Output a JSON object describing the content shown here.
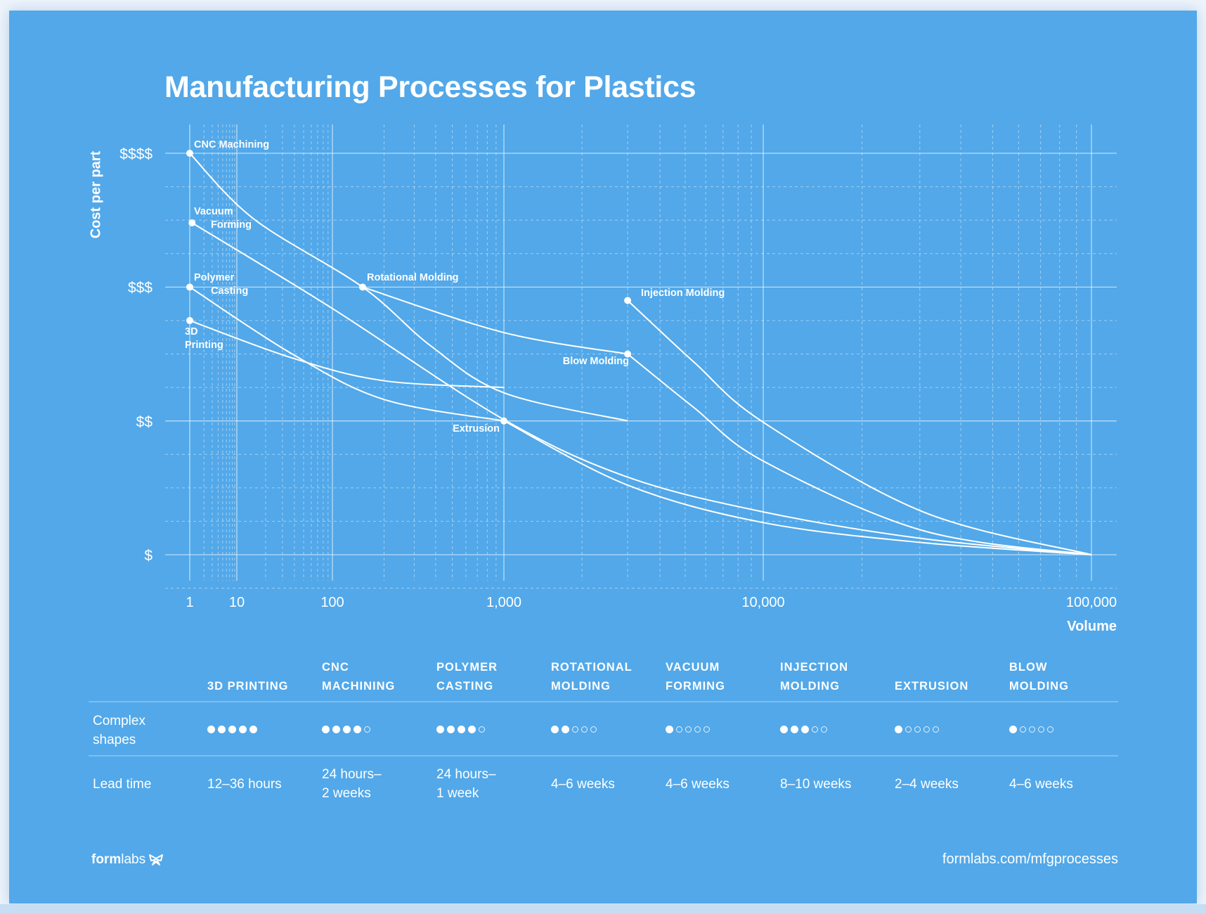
{
  "title": "Manufacturing Processes for Plastics",
  "chart_data": {
    "type": "line",
    "title": "Manufacturing Processes for Plastics",
    "xlabel": "Volume",
    "ylabel": "Cost per part",
    "xscale": "log",
    "xlim": [
      1,
      100000
    ],
    "ylim": [
      1,
      4
    ],
    "x_ticks": [
      {
        "value": 1,
        "label": "1"
      },
      {
        "value": 10,
        "label": "10"
      },
      {
        "value": 100,
        "label": "100"
      },
      {
        "value": 1000,
        "label": "1,000"
      },
      {
        "value": 10000,
        "label": "10,000"
      },
      {
        "value": 100000,
        "label": "100,000"
      }
    ],
    "y_ticks": [
      {
        "value": 4,
        "label": "$$$$"
      },
      {
        "value": 3,
        "label": "$$$"
      },
      {
        "value": 2,
        "label": "$$"
      },
      {
        "value": 1,
        "label": "$"
      }
    ],
    "grid": true,
    "line_color": "#ffffff",
    "curves": [
      {
        "points": [
          [
            1,
            4
          ],
          [
            15,
            3.51
          ],
          [
            150,
            3.0
          ],
          [
            375,
            2.56
          ],
          [
            1000,
            2.21
          ],
          [
            3000,
            2.0
          ]
        ]
      },
      {
        "points": [
          [
            150,
            3.0
          ],
          [
            1000,
            2.66
          ],
          [
            3000,
            2.5
          ]
        ]
      },
      {
        "points": [
          [
            3000,
            2.5
          ],
          [
            5400,
            2.1
          ],
          [
            10000,
            1.7
          ],
          [
            30700,
            1.18
          ],
          [
            100000,
            1.0
          ]
        ]
      },
      {
        "points": [
          [
            3000,
            2.9
          ],
          [
            5400,
            2.44
          ],
          [
            10000,
            1.99
          ],
          [
            30700,
            1.32
          ],
          [
            100000,
            1.0
          ]
        ]
      },
      {
        "points": [
          [
            1.12,
            3.48
          ],
          [
            100,
            2.84
          ],
          [
            1000,
            2.01
          ],
          [
            3000,
            1.58
          ],
          [
            10000,
            1.32
          ],
          [
            30700,
            1.12
          ],
          [
            100000,
            1.0
          ]
        ]
      },
      {
        "points": [
          [
            1,
            3.0
          ],
          [
            38,
            2.5
          ],
          [
            200,
            2.16
          ],
          [
            1000,
            2.0
          ]
        ]
      },
      {
        "points": [
          [
            1000,
            2.0
          ],
          [
            3000,
            1.52
          ],
          [
            10000,
            1.24
          ],
          [
            30700,
            1.09
          ],
          [
            100000,
            1.0
          ]
        ]
      },
      {
        "points": [
          [
            1,
            2.75
          ],
          [
            38,
            2.47
          ],
          [
            200,
            2.3
          ],
          [
            1000,
            2.25
          ]
        ]
      }
    ],
    "annotations": [
      {
        "label": "CNC Machining",
        "lines": [
          "CNC Machining"
        ],
        "x": 1,
        "y": 4
      },
      {
        "label": "Vacuum Forming",
        "lines": [
          "Vacuum",
          "Forming"
        ],
        "x": 1.12,
        "y": 3.48
      },
      {
        "label": "Polymer Casting",
        "lines": [
          "Polymer",
          "Casting"
        ],
        "x": 1,
        "y": 3.0
      },
      {
        "label": "3D Printing",
        "lines": [
          "3D",
          "Printing"
        ],
        "x": 1,
        "y": 2.75
      },
      {
        "label": "Rotational Molding",
        "lines": [
          "Rotational Molding"
        ],
        "x": 150,
        "y": 3.0
      },
      {
        "label": "Injection Molding",
        "lines": [
          "Injection Molding"
        ],
        "x": 3000,
        "y": 2.9
      },
      {
        "label": "Blow Molding",
        "lines": [
          "Blow Molding"
        ],
        "x": 3000,
        "y": 2.5
      },
      {
        "label": "Extrusion",
        "lines": [
          "Extrusion"
        ],
        "x": 1000,
        "y": 2.0
      }
    ]
  },
  "table": {
    "columns": [
      {
        "line1": "",
        "line2": "3D PRINTING"
      },
      {
        "line1": "CNC",
        "line2": "MACHINING"
      },
      {
        "line1": "POLYMER",
        "line2": "CASTING"
      },
      {
        "line1": "ROTATIONAL",
        "line2": "MOLDING"
      },
      {
        "line1": "VACUUM",
        "line2": "FORMING"
      },
      {
        "line1": "INJECTION",
        "line2": "MOLDING"
      },
      {
        "line1": "",
        "line2": "EXTRUSION"
      },
      {
        "line1": "BLOW",
        "line2": "MOLDING"
      }
    ],
    "rows": [
      {
        "label": [
          "Complex",
          "shapes"
        ],
        "rating_max": 5,
        "ratings": [
          5,
          4,
          4,
          2,
          1,
          3,
          1,
          1
        ]
      },
      {
        "label": [
          "Lead time"
        ],
        "values": [
          [
            "12–36 hours"
          ],
          [
            "24 hours–",
            "2 weeks"
          ],
          [
            "24 hours–",
            "1 week"
          ],
          [
            "4–6 weeks"
          ],
          [
            "4–6 weeks"
          ],
          [
            "8–10 weeks"
          ],
          [
            "2–4 weeks"
          ],
          [
            "4–6 weeks"
          ]
        ]
      }
    ]
  },
  "footer": {
    "logo_bold": "form",
    "logo_light": "labs",
    "url": "formlabs.com/mfgprocesses"
  },
  "colors": {
    "background": "#52a8e9",
    "foreground": "#ffffff",
    "rule": "#7cc0f2"
  }
}
